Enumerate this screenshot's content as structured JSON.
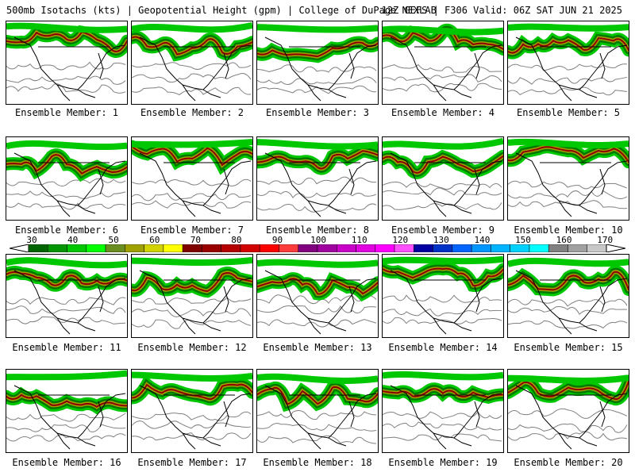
{
  "header": {
    "title_left": "500mb Isotachs (kts) | Geopotential Height (gpm) | College of DuPage NEXLAB",
    "title_right": "12Z GEFS | F306 Valid: 06Z SAT JUN 21 2025"
  },
  "members": [
    "Ensemble Member: 1",
    "Ensemble Member: 2",
    "Ensemble Member: 3",
    "Ensemble Member: 4",
    "Ensemble Member: 5",
    "Ensemble Member: 6",
    "Ensemble Member: 7",
    "Ensemble Member: 8",
    "Ensemble Member: 9",
    "Ensemble Member: 10",
    "Ensemble Member: 11",
    "Ensemble Member: 12",
    "Ensemble Member: 13",
    "Ensemble Member: 14",
    "Ensemble Member: 15",
    "Ensemble Member: 16",
    "Ensemble Member: 17",
    "Ensemble Member: 18",
    "Ensemble Member: 19",
    "Ensemble Member: 20"
  ],
  "legend": {
    "tick_labels": [
      "30",
      "40",
      "50",
      "60",
      "70",
      "80",
      "90",
      "100",
      "110",
      "120",
      "130",
      "140",
      "150",
      "160",
      "170"
    ],
    "colors": [
      "#006400",
      "#009600",
      "#00c800",
      "#00ff00",
      "#6b8e23",
      "#a0a000",
      "#d2d200",
      "#ffff00",
      "#800000",
      "#9b0000",
      "#b40000",
      "#d20000",
      "#ff0000",
      "#ff3c3c",
      "#800080",
      "#a000a0",
      "#c800c8",
      "#e000e0",
      "#ff00ff",
      "#ff50ff",
      "#0000a0",
      "#0032c8",
      "#0064ff",
      "#0096ff",
      "#00b4ff",
      "#00d2ff",
      "#00ffff",
      "#808080",
      "#a0a0a0",
      "#c8c8c8"
    ]
  },
  "map_colors": {
    "jet_light": "#00c800",
    "jet_dark": "#007800",
    "jet_core": "#a0a000",
    "jet_max": "#8b0000",
    "coast": "#000000",
    "height_contour": "#808080"
  }
}
